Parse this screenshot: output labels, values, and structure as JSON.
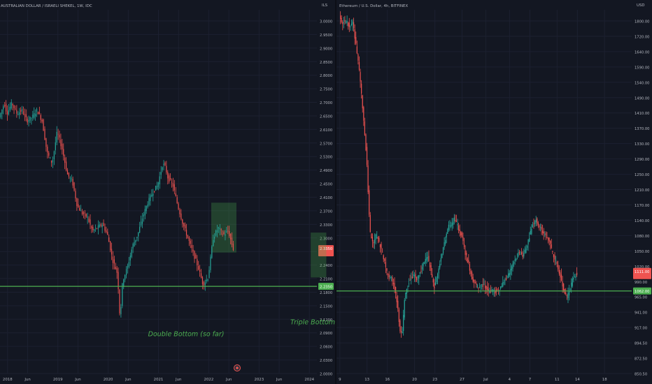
{
  "colors": {
    "background": "#131722",
    "grid": "#1c2030",
    "axis_text": "#b2b5be",
    "up": "#26a69a",
    "down": "#ef5350",
    "support": "#4caf50",
    "box_fill": "rgba(76,175,80,0.28)",
    "annotation": "#4caf50",
    "price_tag": "#ef5350"
  },
  "chart_data": [
    {
      "type": "candlestick",
      "title": "AUSTRALIAN DOLLAR / ISRAELI SHEKEL, 1W, IDC",
      "currency_label": "ILS",
      "x_ticks": [
        "2018",
        "Jun",
        "2019",
        "Jun",
        "2020",
        "Jun",
        "2021",
        "Jun",
        "2022",
        "Jun",
        "2023",
        "Jun",
        "2024"
      ],
      "y_ticks": [
        "3.0000",
        "2.9500",
        "2.9000",
        "2.8500",
        "2.8000",
        "2.7500",
        "2.7000",
        "2.6500",
        "2.6100",
        "2.5700",
        "2.5300",
        "2.4900",
        "2.4500",
        "2.4100",
        "2.3700",
        "2.3300",
        "2.3000",
        "2.2700",
        "2.2400",
        "2.2100",
        "2.1800",
        "2.1500",
        "2.1200",
        "2.0900",
        "2.0600",
        "2.0300",
        "2.0000"
      ],
      "ylim": [
        2.0,
        3.0
      ],
      "support_level": 2.235,
      "support_label": "2.2350",
      "last_price": 2.335,
      "last_price_label": "2.3350",
      "highlight_box": {
        "x_start": 2022.05,
        "x_end": 2022.55,
        "y_low": 2.33,
        "y_high": 2.47
      },
      "annotation": "Double Bottom (so far)",
      "annotation_pos": {
        "x": 2021.55,
        "y": 2.095
      },
      "close_path": [
        [
          2017.85,
          2.71
        ],
        [
          2017.95,
          2.75
        ],
        [
          2018.0,
          2.72
        ],
        [
          2018.1,
          2.75
        ],
        [
          2018.2,
          2.72
        ],
        [
          2018.3,
          2.73
        ],
        [
          2018.4,
          2.7
        ],
        [
          2018.5,
          2.71
        ],
        [
          2018.6,
          2.73
        ],
        [
          2018.7,
          2.7
        ],
        [
          2018.8,
          2.61
        ],
        [
          2018.9,
          2.58
        ],
        [
          2019.0,
          2.67
        ],
        [
          2019.1,
          2.62
        ],
        [
          2019.2,
          2.55
        ],
        [
          2019.3,
          2.53
        ],
        [
          2019.4,
          2.46
        ],
        [
          2019.5,
          2.44
        ],
        [
          2019.6,
          2.43
        ],
        [
          2019.7,
          2.39
        ],
        [
          2019.8,
          2.4
        ],
        [
          2019.9,
          2.41
        ],
        [
          2020.0,
          2.38
        ],
        [
          2020.1,
          2.31
        ],
        [
          2020.2,
          2.27
        ],
        [
          2020.25,
          2.14
        ],
        [
          2020.3,
          2.25
        ],
        [
          2020.4,
          2.29
        ],
        [
          2020.5,
          2.35
        ],
        [
          2020.6,
          2.38
        ],
        [
          2020.7,
          2.43
        ],
        [
          2020.8,
          2.47
        ],
        [
          2020.9,
          2.5
        ],
        [
          2021.0,
          2.52
        ],
        [
          2021.1,
          2.58
        ],
        [
          2021.15,
          2.57
        ],
        [
          2021.2,
          2.54
        ],
        [
          2021.3,
          2.52
        ],
        [
          2021.4,
          2.46
        ],
        [
          2021.5,
          2.41
        ],
        [
          2021.6,
          2.37
        ],
        [
          2021.7,
          2.33
        ],
        [
          2021.8,
          2.29
        ],
        [
          2021.9,
          2.24
        ],
        [
          2022.0,
          2.26
        ],
        [
          2022.1,
          2.37
        ],
        [
          2022.2,
          2.4
        ],
        [
          2022.3,
          2.38
        ],
        [
          2022.4,
          2.39
        ],
        [
          2022.5,
          2.34
        ]
      ]
    },
    {
      "type": "candlestick",
      "title": "Ethereum / U.S. Dollar, 4h, BITFINEX",
      "currency_label": "USD",
      "x_ticks": [
        "9",
        "13",
        "16",
        "20",
        "23",
        "27",
        "Jul",
        "4",
        "7",
        "11",
        "14",
        "18"
      ],
      "y_ticks": [
        "1800.00",
        "1720.00",
        "1640.00",
        "1590.00",
        "1540.00",
        "1490.00",
        "1410.00",
        "1370.00",
        "1330.00",
        "1290.00",
        "1250.00",
        "1210.00",
        "1170.00",
        "1140.00",
        "1080.00",
        "1050.00",
        "1020.00",
        "990.00",
        "965.00",
        "941.00",
        "917.00",
        "894.50",
        "872.50",
        "850.50"
      ],
      "ylim": [
        840,
        1840
      ],
      "support_level": 1062,
      "support_label": "1062.00",
      "last_price": 1111,
      "last_price_label": "1111.00",
      "highlight_box": {
        "x_start": 4.7,
        "x_end": 7.0,
        "y_low": 1100,
        "y_high": 1226
      },
      "annotation": "Triple Bottom",
      "annotation_pos": {
        "x": 5.0,
        "y": 968
      },
      "close_path": [
        [
          9.0,
          1830
        ],
        [
          9.5,
          1815
        ],
        [
          10.0,
          1822
        ],
        [
          10.5,
          1805
        ],
        [
          11.0,
          1815
        ],
        [
          11.5,
          1745
        ],
        [
          12.0,
          1670
        ],
        [
          12.5,
          1560
        ],
        [
          13.0,
          1440
        ],
        [
          13.4,
          1270
        ],
        [
          13.6,
          1215
        ],
        [
          14.0,
          1200
        ],
        [
          14.5,
          1220
        ],
        [
          15.0,
          1190
        ],
        [
          15.5,
          1155
        ],
        [
          16.0,
          1115
        ],
        [
          16.5,
          1100
        ],
        [
          17.0,
          1085
        ],
        [
          17.5,
          1030
        ],
        [
          18.0,
          940
        ],
        [
          18.3,
          950
        ],
        [
          18.6,
          1040
        ],
        [
          19.0,
          1075
        ],
        [
          19.5,
          1100
        ],
        [
          20.0,
          1105
        ],
        [
          20.5,
          1095
        ],
        [
          21.0,
          1120
        ],
        [
          21.5,
          1145
        ],
        [
          22.0,
          1160
        ],
        [
          22.5,
          1115
        ],
        [
          23.0,
          1075
        ],
        [
          23.5,
          1110
        ],
        [
          24.0,
          1160
        ],
        [
          24.5,
          1200
        ],
        [
          25.0,
          1240
        ],
        [
          25.5,
          1250
        ],
        [
          26.0,
          1265
        ],
        [
          26.5,
          1240
        ],
        [
          27.0,
          1220
        ],
        [
          27.5,
          1170
        ],
        [
          28.0,
          1140
        ],
        [
          28.5,
          1100
        ],
        [
          29.0,
          1080
        ],
        [
          29.5,
          1070
        ],
        [
          30.0,
          1080
        ],
        [
          30.5,
          1075
        ],
        [
          31.0,
          1060
        ],
        [
          31.5,
          1065
        ],
        [
          32.0,
          1060
        ],
        [
          32.5,
          1065
        ],
        [
          33.0,
          1080
        ],
        [
          33.5,
          1095
        ],
        [
          34.0,
          1110
        ],
        [
          34.5,
          1135
        ],
        [
          35.0,
          1150
        ],
        [
          35.5,
          1170
        ],
        [
          36.0,
          1160
        ],
        [
          36.5,
          1180
        ],
        [
          37.0,
          1215
        ],
        [
          37.5,
          1250
        ],
        [
          38.0,
          1265
        ],
        [
          38.5,
          1240
        ],
        [
          39.0,
          1225
        ],
        [
          39.5,
          1215
        ],
        [
          40.0,
          1200
        ],
        [
          40.5,
          1160
        ],
        [
          41.0,
          1140
        ],
        [
          41.5,
          1110
        ],
        [
          42.0,
          1070
        ],
        [
          42.5,
          1045
        ],
        [
          43.0,
          1070
        ],
        [
          43.5,
          1100
        ],
        [
          44.0,
          1112
        ]
      ]
    }
  ]
}
